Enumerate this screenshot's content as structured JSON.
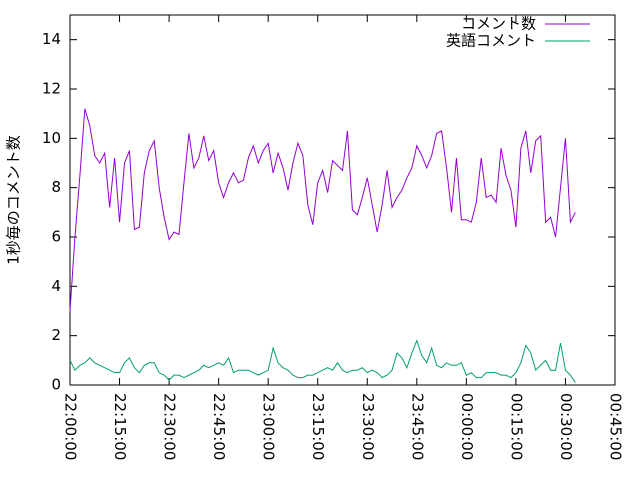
{
  "chart_data": {
    "type": "line",
    "y_label": "1秒毎のコメント数",
    "x": [
      0,
      1.5,
      3,
      4.5,
      6,
      7.5,
      9,
      10.5,
      12,
      13.5,
      15,
      16.5,
      18,
      19.5,
      21,
      22.5,
      24,
      25.5,
      27,
      28.5,
      30,
      31.5,
      33,
      34.5,
      36,
      37.5,
      39,
      40.5,
      42,
      43.5,
      45,
      46.5,
      48,
      49.5,
      51,
      52.5,
      54,
      55.5,
      57,
      58.5,
      60,
      61.5,
      63,
      64.5,
      66,
      67.5,
      69,
      70.5,
      72,
      73.5,
      75,
      76.5,
      78,
      79.5,
      81,
      82.5,
      84,
      85.5,
      87,
      88.5,
      90,
      91.5,
      93,
      94.5,
      96,
      97.5,
      99,
      100.5,
      102,
      103.5,
      105,
      106.5,
      108,
      109.5,
      111,
      112.5,
      114,
      115.5,
      117,
      118.5,
      120,
      121.5,
      123,
      124.5,
      126,
      127.5,
      129,
      130.5,
      132,
      133.5,
      135,
      136.5,
      138,
      139.5,
      141,
      142.5,
      144,
      145.5,
      147,
      148.5,
      150,
      151.5,
      153
    ],
    "series": [
      {
        "name": "コメント数",
        "color": "#9400d3",
        "values": [
          3,
          6,
          8.5,
          11.2,
          10.5,
          9.3,
          9,
          9.4,
          7.2,
          9.2,
          6.6,
          9,
          9.5,
          6.3,
          6.4,
          8.6,
          9.5,
          9.9,
          8,
          6.8,
          5.9,
          6.2,
          6.1,
          8.2,
          10.2,
          8.8,
          9.2,
          10.1,
          9.1,
          9.5,
          8.2,
          7.6,
          8.2,
          8.6,
          8.2,
          8.3,
          9.2,
          9.7,
          9,
          9.5,
          9.8,
          8.6,
          9.4,
          8.8,
          7.9,
          9,
          9.8,
          9.3,
          7.3,
          6.5,
          8.2,
          8.7,
          7.8,
          9.1,
          8.9,
          8.7,
          10.3,
          7.1,
          6.9,
          7.6,
          8.4,
          7.3,
          6.2,
          7.3,
          8.7,
          7.2,
          7.6,
          7.9,
          8.4,
          8.8,
          9.7,
          9.3,
          8.8,
          9.3,
          10.2,
          10.3,
          8.8,
          7,
          9.2,
          6.7,
          6.7,
          6.6,
          7.4,
          9.2,
          7.6,
          7.7,
          7.4,
          9.6,
          8.5,
          7.9,
          6.4,
          9.6,
          10.3,
          8.6,
          9.9,
          10.1,
          6.6,
          6.8,
          6,
          8,
          10,
          6.6,
          7.0
        ]
      },
      {
        "name": "英語コメント",
        "color": "#009e73",
        "values": [
          1.0,
          0.6,
          0.8,
          0.9,
          1.1,
          0.9,
          0.8,
          0.7,
          0.6,
          0.5,
          0.5,
          0.9,
          1.1,
          0.7,
          0.5,
          0.8,
          0.9,
          0.9,
          0.5,
          0.4,
          0.2,
          0.4,
          0.4,
          0.3,
          0.4,
          0.5,
          0.6,
          0.8,
          0.7,
          0.8,
          0.9,
          0.8,
          1.1,
          0.5,
          0.6,
          0.6,
          0.6,
          0.5,
          0.4,
          0.5,
          0.6,
          1.5,
          0.9,
          0.7,
          0.6,
          0.4,
          0.3,
          0.3,
          0.4,
          0.4,
          0.5,
          0.6,
          0.7,
          0.6,
          0.9,
          0.6,
          0.5,
          0.6,
          0.6,
          0.7,
          0.5,
          0.6,
          0.5,
          0.3,
          0.4,
          0.6,
          1.3,
          1.1,
          0.7,
          1.3,
          1.8,
          1.2,
          0.9,
          1.5,
          0.8,
          0.7,
          0.9,
          0.8,
          0.8,
          0.9,
          0.4,
          0.5,
          0.3,
          0.3,
          0.5,
          0.5,
          0.5,
          0.4,
          0.4,
          0.3,
          0.5,
          0.9,
          1.6,
          1.3,
          0.6,
          0.8,
          1.0,
          0.6,
          0.6,
          1.7,
          0.6,
          0.4,
          0.1
        ]
      }
    ],
    "xlim": [
      0,
      165
    ],
    "xticks": [
      {
        "value": 0,
        "label": "22:00:00"
      },
      {
        "value": 15,
        "label": "22:15:00"
      },
      {
        "value": 30,
        "label": "22:30:00"
      },
      {
        "value": 45,
        "label": "22:45:00"
      },
      {
        "value": 60,
        "label": "23:00:00"
      },
      {
        "value": 75,
        "label": "23:15:00"
      },
      {
        "value": 90,
        "label": "23:30:00"
      },
      {
        "value": 105,
        "label": "23:45:00"
      },
      {
        "value": 120,
        "label": "00:00:00"
      },
      {
        "value": 135,
        "label": "00:15:00"
      },
      {
        "value": 150,
        "label": "00:30:00"
      },
      {
        "value": 165,
        "label": "00:45:00"
      }
    ],
    "ylim": [
      0,
      15
    ],
    "yticks": [
      0,
      2,
      4,
      6,
      8,
      10,
      12,
      14
    ],
    "legend": "top-right"
  }
}
